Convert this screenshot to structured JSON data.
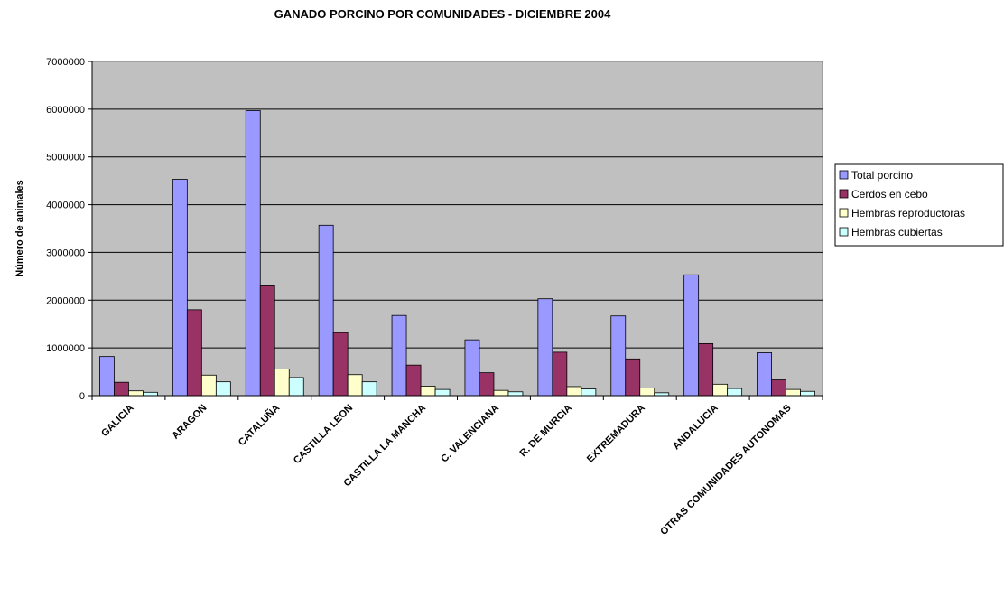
{
  "chart_data": {
    "type": "bar",
    "title": "GANADO PORCINO POR COMUNIDADES - DICIEMBRE 2004",
    "xlabel": "",
    "ylabel": "Número de animales",
    "ylim": [
      0,
      7000000
    ],
    "yticks": [
      0,
      1000000,
      2000000,
      3000000,
      4000000,
      5000000,
      6000000,
      7000000
    ],
    "grid": true,
    "legend_position": "right",
    "categories": [
      "GALICIA",
      "ARAGON",
      "CATALUÑA",
      "CASTILLA LEON",
      "CASTILLA LA MANCHA",
      "C. VALENCIANA",
      "R. DE MURCIA",
      "EXTREMADURA",
      "ANDALUCIA",
      "OTRAS COMUNIDADES AUTONOMAS"
    ],
    "series": [
      {
        "name": "Total porcino",
        "color": "#9999ff",
        "values": [
          820000,
          4530000,
          5970000,
          3570000,
          1680000,
          1170000,
          2030000,
          1670000,
          2530000,
          900000
        ]
      },
      {
        "name": "Cerdos en cebo",
        "color": "#993366",
        "values": [
          280000,
          1800000,
          2300000,
          1320000,
          640000,
          480000,
          910000,
          770000,
          1090000,
          330000
        ]
      },
      {
        "name": "Hembras reproductoras",
        "color": "#ffffcc",
        "values": [
          100000,
          430000,
          560000,
          440000,
          200000,
          110000,
          190000,
          160000,
          240000,
          130000
        ]
      },
      {
        "name": "Hembras cubiertas",
        "color": "#ccffff",
        "values": [
          70000,
          290000,
          380000,
          290000,
          130000,
          80000,
          140000,
          60000,
          150000,
          90000
        ]
      }
    ],
    "plot_background": "#c0c0c0"
  }
}
